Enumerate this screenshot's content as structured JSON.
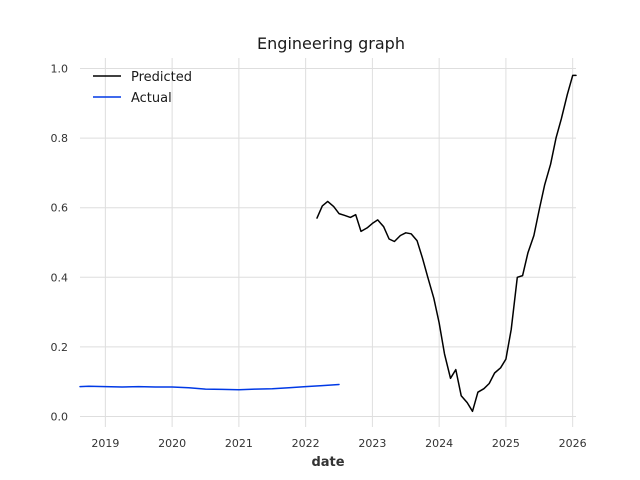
{
  "chart_data": {
    "type": "line",
    "title": "Engineering graph",
    "xlabel": "date",
    "ylabel": "",
    "xlim": [
      2018.62,
      2026.05
    ],
    "ylim": [
      -0.03,
      1.03
    ],
    "xticks": [
      2019,
      2020,
      2021,
      2022,
      2023,
      2024,
      2025,
      2026
    ],
    "xtick_labels": [
      "2019",
      "2020",
      "2021",
      "2022",
      "2023",
      "2024",
      "2025",
      "2026"
    ],
    "yticks": [
      0.0,
      0.2,
      0.4,
      0.6,
      0.8,
      1.0
    ],
    "ytick_labels": [
      "0.0",
      "0.2",
      "0.4",
      "0.6",
      "0.8",
      "1.0"
    ],
    "grid": true,
    "legend_position": "top-left",
    "series": [
      {
        "name": "Predicted",
        "color": "#000000",
        "x": [
          2022.17,
          2022.25,
          2022.33,
          2022.42,
          2022.5,
          2022.58,
          2022.67,
          2022.75,
          2022.83,
          2022.92,
          2023.0,
          2023.08,
          2023.17,
          2023.25,
          2023.33,
          2023.42,
          2023.5,
          2023.58,
          2023.67,
          2023.75,
          2023.83,
          2023.92,
          2024.0,
          2024.08,
          2024.17,
          2024.25,
          2024.33,
          2024.42,
          2024.5,
          2024.58,
          2024.67,
          2024.75,
          2024.83,
          2024.92,
          2025.0,
          2025.08,
          2025.17,
          2025.25,
          2025.33,
          2025.42,
          2025.5,
          2025.58,
          2025.67,
          2025.75,
          2025.83,
          2025.92,
          2026.0,
          2026.05
        ],
        "y": [
          0.57,
          0.605,
          0.618,
          0.603,
          0.583,
          0.578,
          0.572,
          0.58,
          0.532,
          0.542,
          0.555,
          0.565,
          0.545,
          0.51,
          0.503,
          0.52,
          0.528,
          0.525,
          0.505,
          0.455,
          0.4,
          0.34,
          0.27,
          0.18,
          0.11,
          0.135,
          0.06,
          0.04,
          0.015,
          0.07,
          0.08,
          0.095,
          0.125,
          0.14,
          0.165,
          0.25,
          0.4,
          0.405,
          0.47,
          0.52,
          0.595,
          0.665,
          0.725,
          0.8,
          0.855,
          0.925,
          0.98,
          0.98
        ]
      },
      {
        "name": "Actual",
        "color": "#0039e6",
        "x": [
          2018.62,
          2018.75,
          2019.0,
          2019.25,
          2019.5,
          2019.75,
          2020.0,
          2020.25,
          2020.5,
          2020.75,
          2021.0,
          2021.25,
          2021.5,
          2021.75,
          2022.0,
          2022.25,
          2022.5
        ],
        "y": [
          0.086,
          0.087,
          0.086,
          0.085,
          0.086,
          0.085,
          0.085,
          0.083,
          0.079,
          0.078,
          0.077,
          0.079,
          0.08,
          0.083,
          0.086,
          0.089,
          0.092
        ]
      }
    ]
  }
}
